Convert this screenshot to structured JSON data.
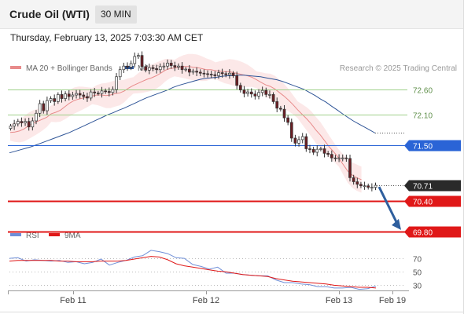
{
  "header": {
    "instrument": "Crude Oil (WTI)",
    "timeframe": "30 MIN",
    "datetime": "Thursday, February 13, 2025 7:03:30 AM CET"
  },
  "legend": {
    "ma20_label": "MA 20 + Bollinger Bands",
    "ma50_label": "MA 50",
    "source": "Research © 2025 Trading Central",
    "rsi_label": "RSI",
    "rsi_ma_label": "9MA"
  },
  "colors": {
    "ma20": "#e88b8b",
    "bollinger_fill": "#fbe0e0",
    "ma50": "#2f5597",
    "candle_up": "#ffffff",
    "candle_down": "#6b1f24",
    "green_levels": "#9fd08a",
    "blue_level": "#2a64d6",
    "red_levels": "#e01818",
    "current_price": "#2a2a2a",
    "arrow": "#2f5f9e",
    "rsi": "#6f8fd8",
    "rsi_ma": "#e01818"
  },
  "chart_data": [
    {
      "type": "candlestick",
      "title": "Crude Oil (WTI)",
      "timeframe": "30 MIN",
      "x_ticks": [
        "Feb 11",
        "Feb 12",
        "Feb 13",
        "Feb 19"
      ],
      "ylim": [
        69.55,
        73.45
      ],
      "levels": [
        {
          "value": 72.6,
          "label": "72.60",
          "style": "green-line"
        },
        {
          "value": 72.1,
          "label": "72.10",
          "style": "green-line"
        },
        {
          "value": 71.5,
          "label": "71.50",
          "style": "blue-line"
        },
        {
          "value": 70.4,
          "label": "70.40",
          "style": "red-line"
        },
        {
          "value": 69.8,
          "label": "69.80",
          "style": "red-line"
        }
      ],
      "current_price": {
        "value": 70.71,
        "label": "70.71"
      },
      "projection": {
        "from": 70.71,
        "to": 69.8,
        "direction": "down"
      },
      "close": [
        71.88,
        71.92,
        71.97,
        71.94,
        71.97,
        71.86,
        71.98,
        72.13,
        72.32,
        72.18,
        72.38,
        72.42,
        72.36,
        72.5,
        72.42,
        72.51,
        72.46,
        72.49,
        72.52,
        72.49,
        72.46,
        72.43,
        72.55,
        72.53,
        72.52,
        72.57,
        72.56,
        72.54,
        72.6,
        72.85,
        72.99,
        73.06,
        73.04,
        73.11,
        73.25,
        73.27,
        73.05,
        72.98,
        73.03,
        73.01,
        72.99,
        73.05,
        73.06,
        73.12,
        73.07,
        73.04,
        73.06,
        72.99,
        73.0,
        72.94,
        72.96,
        72.94,
        72.92,
        72.91,
        72.9,
        72.89,
        72.87,
        72.93,
        72.91,
        72.89,
        72.92,
        72.87,
        72.68,
        72.59,
        72.52,
        72.55,
        72.51,
        72.47,
        72.54,
        72.58,
        72.5,
        72.5,
        72.36,
        72.23,
        72.21,
        72.04,
        71.95,
        71.64,
        71.54,
        71.61,
        71.67,
        71.43,
        71.42,
        71.36,
        71.42,
        71.43,
        71.34,
        71.32,
        71.25,
        71.24,
        71.25,
        71.25,
        71.24,
        70.86,
        70.78,
        70.73,
        70.7,
        70.7,
        70.67,
        70.67,
        70.71
      ],
      "ma20": [
        71.75,
        71.76,
        71.78,
        71.82,
        71.88,
        71.93,
        71.97,
        72.01,
        72.05,
        72.12,
        72.15,
        72.19,
        72.26,
        72.33,
        72.38,
        72.41,
        72.43,
        72.45,
        72.47,
        72.49,
        72.49,
        72.48,
        72.49,
        72.52,
        72.53,
        72.57,
        72.63,
        72.68,
        72.72,
        72.76,
        72.8,
        72.83,
        72.87,
        72.92,
        72.98,
        73.01,
        73.02,
        73.04,
        73.05,
        73.05,
        73.04,
        73.03,
        73.01,
        72.99,
        72.99,
        72.97,
        72.96,
        72.95,
        72.95,
        72.93,
        72.91,
        72.89,
        72.87,
        72.84,
        72.79,
        72.74,
        72.69,
        72.66,
        72.61,
        72.54,
        72.47,
        72.39,
        72.3,
        72.2,
        72.11,
        72.02,
        71.92,
        71.8,
        71.7,
        71.58,
        71.46,
        71.36,
        71.25,
        71.12,
        70.99,
        70.91,
        70.86,
        70.82
      ],
      "ma50": [
        71.35,
        71.38,
        71.41,
        71.44,
        71.47,
        71.51,
        71.55,
        71.59,
        71.63,
        71.67,
        71.71,
        71.75,
        71.8,
        71.85,
        71.9,
        71.95,
        72.0,
        72.05,
        72.1,
        72.14,
        72.19,
        72.23,
        72.28,
        72.33,
        72.38,
        72.43,
        72.47,
        72.51,
        72.55,
        72.59,
        72.64,
        72.68,
        72.71,
        72.74,
        72.77,
        72.8,
        72.82,
        72.83,
        72.84,
        72.86,
        72.87,
        72.87,
        72.88,
        72.88,
        72.87,
        72.86,
        72.85,
        72.83,
        72.81,
        72.79,
        72.76,
        72.72,
        72.68,
        72.64,
        72.6,
        72.54,
        72.48,
        72.41,
        72.35,
        72.27,
        72.2,
        72.12,
        72.05,
        71.98,
        71.92,
        71.86,
        71.8,
        71.74
      ]
    },
    {
      "type": "line",
      "title": "RSI",
      "ylim": [
        20,
        90
      ],
      "y_ticks": [
        70,
        50,
        30
      ],
      "series": [
        {
          "name": "RSI",
          "values": [
            70,
            71,
            66,
            68,
            67,
            66,
            67,
            64,
            65,
            62,
            64,
            69,
            60,
            64,
            67,
            72,
            74,
            82,
            80,
            77,
            71,
            70,
            61,
            58,
            54,
            57,
            48,
            48,
            46,
            45,
            44,
            44,
            38,
            34,
            34,
            32,
            31,
            28,
            28,
            26,
            26,
            27,
            24,
            25,
            29
          ]
        },
        {
          "name": "9MA",
          "values": [
            66,
            67,
            67,
            67,
            67,
            67,
            66,
            66,
            65,
            65,
            65,
            66,
            66,
            66,
            67,
            69,
            71,
            73,
            72,
            68,
            62,
            59,
            57,
            55,
            53,
            51,
            50,
            48,
            46,
            45,
            44,
            43,
            40,
            38,
            36,
            35,
            34,
            33,
            32,
            30,
            29,
            28,
            27,
            27,
            26
          ]
        }
      ]
    }
  ]
}
